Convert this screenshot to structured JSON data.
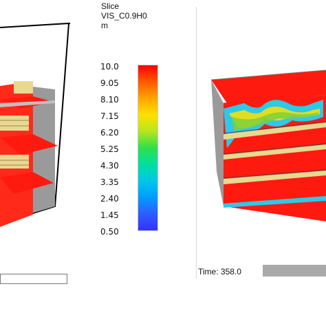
{
  "colorbar": {
    "title": "Slice\nVIS_C0.9H0\nm",
    "ticks": [
      "10.0",
      "9.05",
      "8.10",
      "7.15",
      "6.20",
      "5.25",
      "4.30",
      "3.35",
      "2.40",
      "1.45",
      "0.50"
    ]
  },
  "right_view": {
    "time_label": "Time: 358.0"
  },
  "colors": {
    "hot": "#ff0000",
    "background": "#ffffff",
    "floor_gray": "#a0a0a0"
  }
}
